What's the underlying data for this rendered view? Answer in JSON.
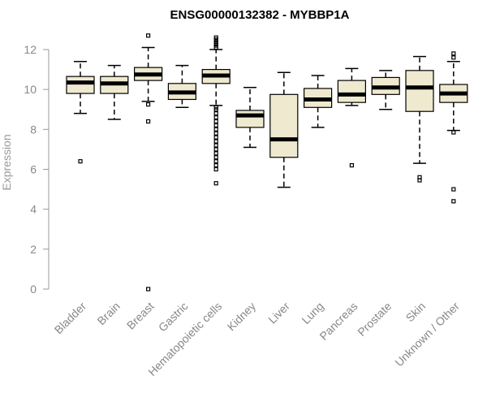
{
  "chart_data": {
    "type": "boxplot",
    "title": "ENSG00000132382 - MYBBP1A",
    "xlabel": "",
    "ylabel": "Expression",
    "ylim": [
      0,
      12
    ],
    "yticks": [
      0,
      2,
      4,
      6,
      8,
      10,
      12
    ],
    "box_fill": "#efe9cf",
    "categories": [
      "Bladder",
      "Brain",
      "Breast",
      "Gastric",
      "Hematopoietic cells",
      "Kidney",
      "Liver",
      "Lung",
      "Pancreas",
      "Prostate",
      "Skin",
      "Unknown / Other"
    ],
    "series": [
      {
        "name": "Bladder",
        "min": 8.8,
        "q1": 9.8,
        "median": 10.35,
        "q3": 10.65,
        "max": 11.4,
        "outliers": [
          6.4
        ]
      },
      {
        "name": "Brain",
        "min": 8.5,
        "q1": 9.8,
        "median": 10.3,
        "q3": 10.65,
        "max": 11.2,
        "outliers": []
      },
      {
        "name": "Breast",
        "min": 9.4,
        "q1": 10.45,
        "median": 10.75,
        "q3": 11.1,
        "max": 12.1,
        "outliers": [
          12.7,
          9.25,
          8.4,
          0.0
        ]
      },
      {
        "name": "Gastric",
        "min": 9.1,
        "q1": 9.5,
        "median": 9.85,
        "q3": 10.3,
        "max": 11.2,
        "outliers": []
      },
      {
        "name": "Hematopoietic cells",
        "min": 9.2,
        "q1": 10.3,
        "median": 10.7,
        "q3": 11.0,
        "max": 12.0,
        "outliers": [
          12.6,
          12.5,
          12.4,
          12.3,
          12.2,
          12.1,
          9.1,
          9.0,
          8.8,
          8.6,
          8.4,
          8.2,
          8.0,
          7.8,
          7.6,
          7.4,
          7.2,
          7.0,
          6.8,
          6.6,
          6.4,
          6.2,
          6.0,
          5.3
        ]
      },
      {
        "name": "Kidney",
        "min": 7.1,
        "q1": 8.1,
        "median": 8.7,
        "q3": 8.95,
        "max": 10.1,
        "outliers": []
      },
      {
        "name": "Liver",
        "min": 5.1,
        "q1": 6.6,
        "median": 7.5,
        "q3": 9.75,
        "max": 10.85,
        "outliers": []
      },
      {
        "name": "Lung",
        "min": 8.1,
        "q1": 9.1,
        "median": 9.5,
        "q3": 10.05,
        "max": 10.7,
        "outliers": []
      },
      {
        "name": "Pancreas",
        "min": 9.2,
        "q1": 9.35,
        "median": 9.75,
        "q3": 10.45,
        "max": 11.05,
        "outliers": [
          6.2
        ]
      },
      {
        "name": "Prostate",
        "min": 9.0,
        "q1": 9.75,
        "median": 10.1,
        "q3": 10.6,
        "max": 10.95,
        "outliers": []
      },
      {
        "name": "Skin",
        "min": 6.3,
        "q1": 8.9,
        "median": 10.1,
        "q3": 10.95,
        "max": 11.65,
        "outliers": [
          5.6,
          5.45
        ]
      },
      {
        "name": "Unknown / Other",
        "min": 7.95,
        "q1": 9.35,
        "median": 9.8,
        "q3": 10.25,
        "max": 11.4,
        "outliers": [
          11.8,
          11.6,
          7.85,
          5.0,
          4.4
        ]
      }
    ]
  }
}
